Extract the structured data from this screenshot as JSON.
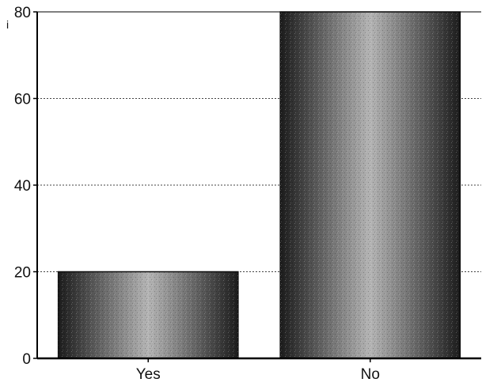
{
  "chart_data": {
    "type": "bar",
    "title": "",
    "xlabel": "",
    "ylabel": "",
    "categories": [
      "Yes",
      "No"
    ],
    "values": [
      20,
      80
    ],
    "ylim": [
      0,
      80
    ],
    "yticks": [
      0,
      20,
      40,
      60,
      80
    ],
    "ytick_labels": [
      "0",
      "20",
      "40",
      "60",
      "80"
    ],
    "grid": true,
    "grid_style": "dotted-horizontal",
    "legend": "none"
  },
  "colors": {
    "bar_dark": "#1c1c1c",
    "bar_light": "#b4b4b4",
    "axis": "#000000",
    "grid": "#444444"
  },
  "stray_mark": "i"
}
